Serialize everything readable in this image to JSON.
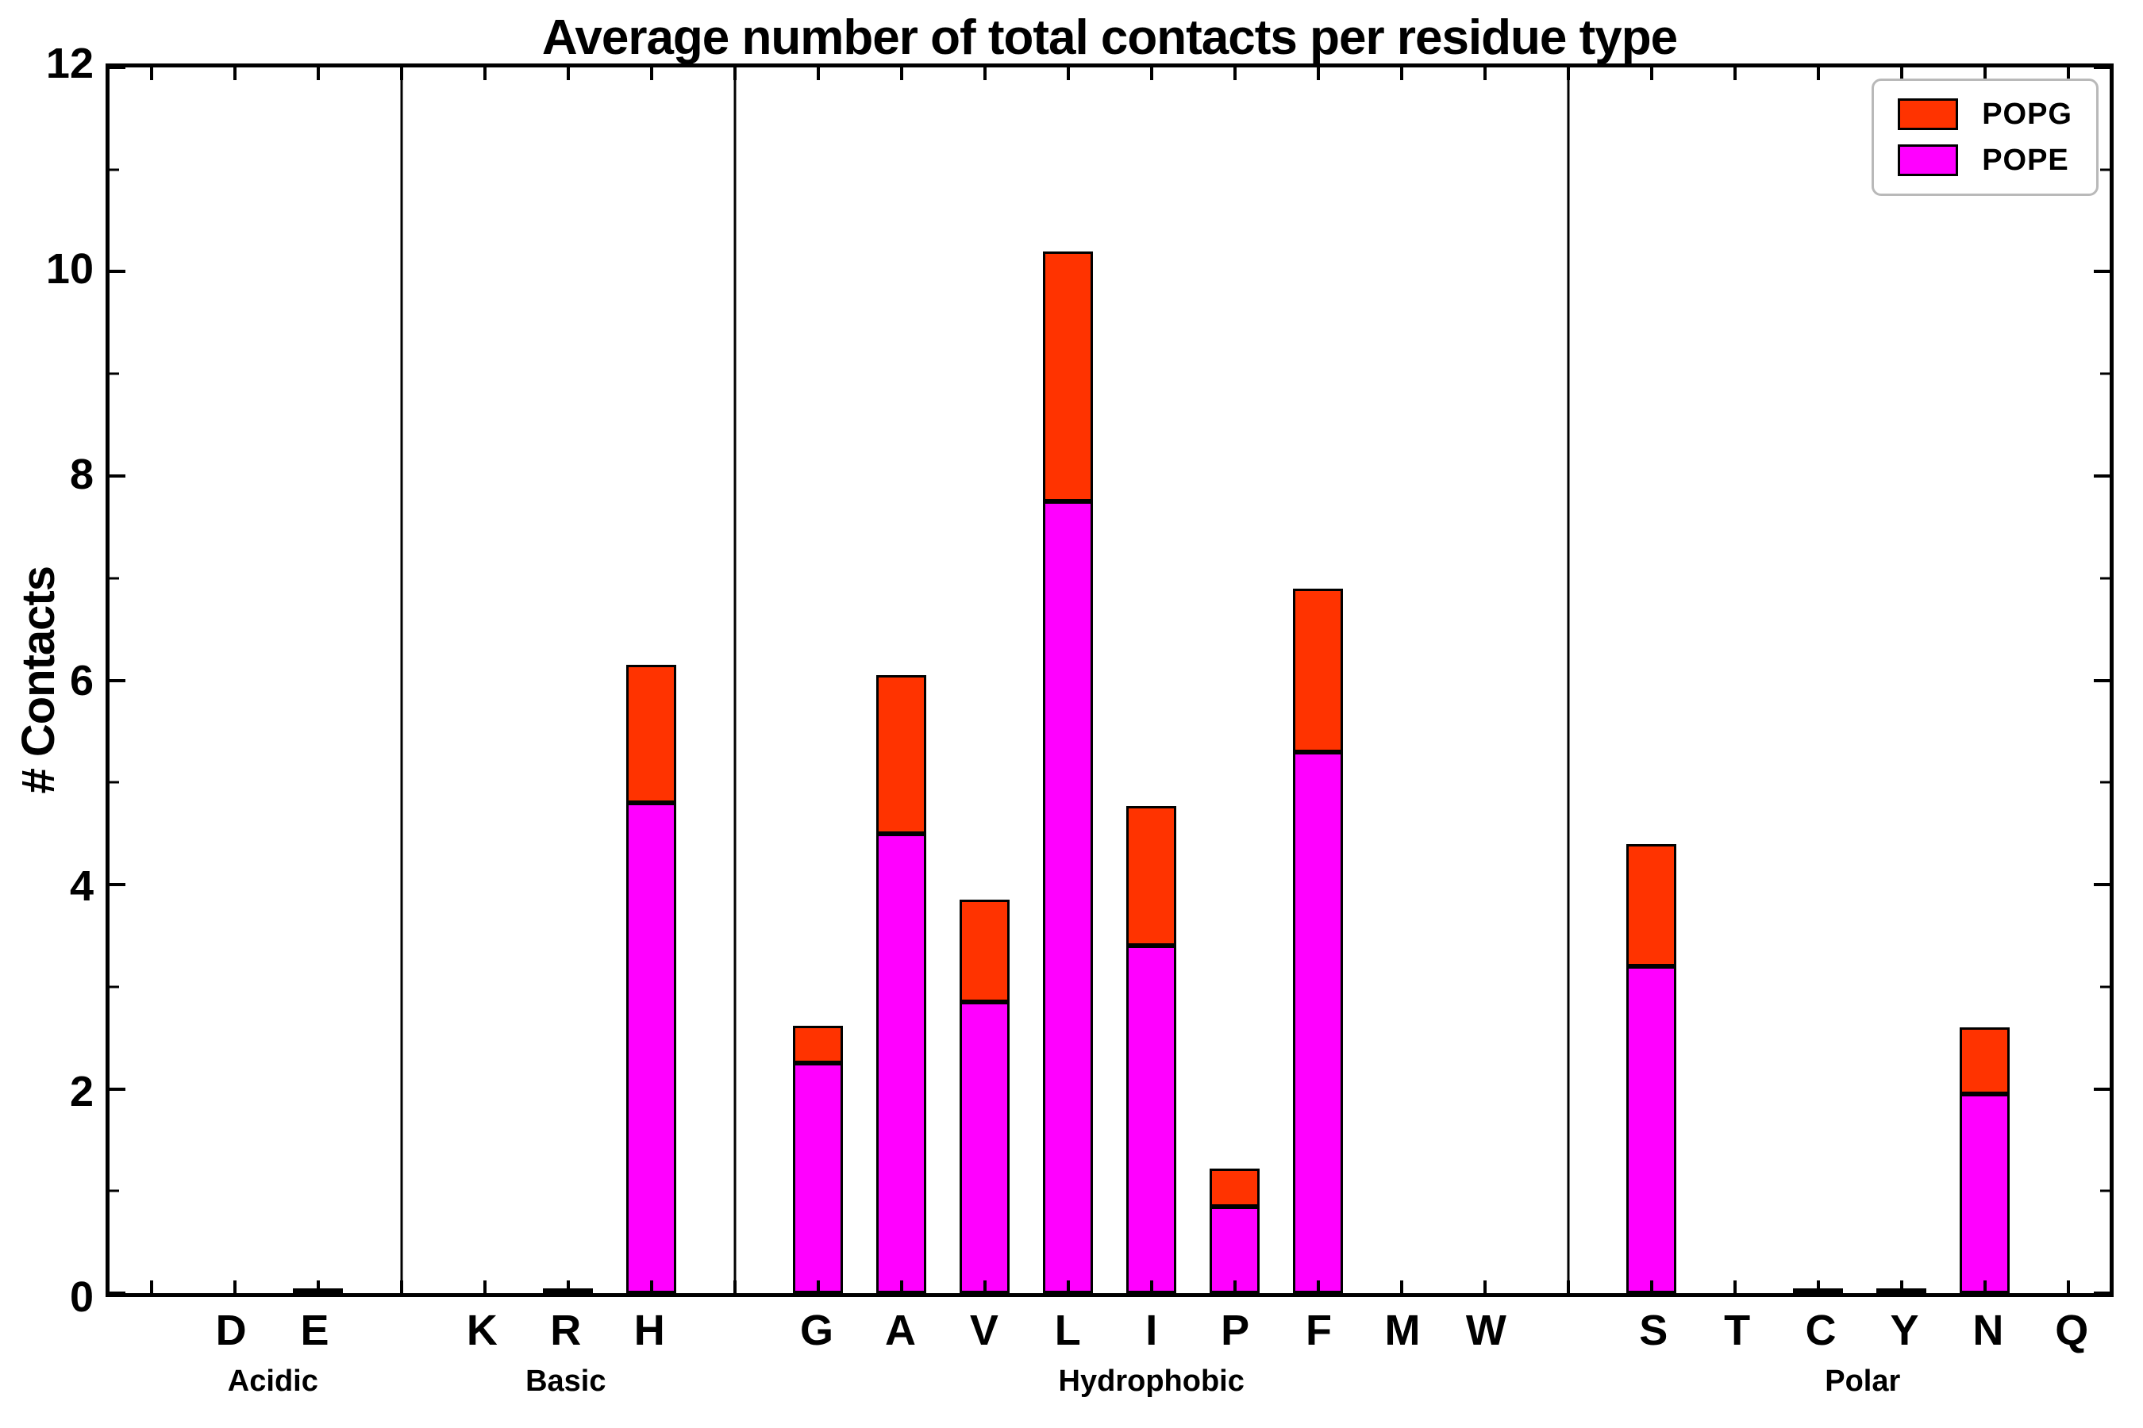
{
  "title": "Average number of total contacts per residue type",
  "legend": {
    "position": "upper right",
    "items": [
      {
        "label": "POPG",
        "color": "#ff3300"
      },
      {
        "label": "POPE",
        "color": "#ff00ff"
      }
    ]
  },
  "chart_data": {
    "type": "bar",
    "stacked": true,
    "title": "Average number of total contacts per residue type",
    "xlabel": "",
    "ylabel": "# Contacts",
    "ylim": [
      0,
      12
    ],
    "yticks": [
      0,
      2,
      4,
      6,
      8,
      10,
      12
    ],
    "minor_yticks": [
      1,
      3,
      5,
      7,
      9,
      11
    ],
    "grid": false,
    "legend_position": "upper right",
    "groups": [
      {
        "label": "Acidic",
        "categories": [
          "D",
          "E"
        ]
      },
      {
        "label": "Basic",
        "categories": [
          "K",
          "R",
          "H"
        ]
      },
      {
        "label": "Hydrophobic",
        "categories": [
          "G",
          "A",
          "V",
          "L",
          "I",
          "P",
          "F",
          "M",
          "W"
        ]
      },
      {
        "label": "Polar",
        "categories": [
          "S",
          "T",
          "C",
          "Y",
          "N",
          "Q"
        ]
      }
    ],
    "categories": [
      "D",
      "E",
      "K",
      "R",
      "H",
      "G",
      "A",
      "V",
      "L",
      "I",
      "P",
      "F",
      "M",
      "W",
      "S",
      "T",
      "C",
      "Y",
      "N",
      "Q"
    ],
    "series": [
      {
        "name": "POPE",
        "color": "#ff00ff",
        "values": [
          0,
          0.03,
          0,
          0.03,
          4.8,
          2.25,
          4.5,
          2.85,
          7.75,
          3.4,
          0.85,
          5.3,
          0,
          0,
          3.2,
          0,
          0.03,
          0.04,
          1.95,
          0
        ]
      },
      {
        "name": "POPG",
        "color": "#ff3300",
        "values": [
          0,
          0,
          0,
          0,
          1.35,
          0.37,
          1.55,
          1.0,
          2.45,
          1.37,
          0.37,
          1.6,
          0,
          0,
          1.2,
          0,
          0,
          0,
          0.65,
          0
        ]
      }
    ],
    "totals": [
      0,
      0.03,
      0,
      0.03,
      6.15,
      2.62,
      6.05,
      3.85,
      10.2,
      4.77,
      1.22,
      6.9,
      0,
      0,
      4.4,
      0,
      0.03,
      0.04,
      2.6,
      0
    ]
  }
}
